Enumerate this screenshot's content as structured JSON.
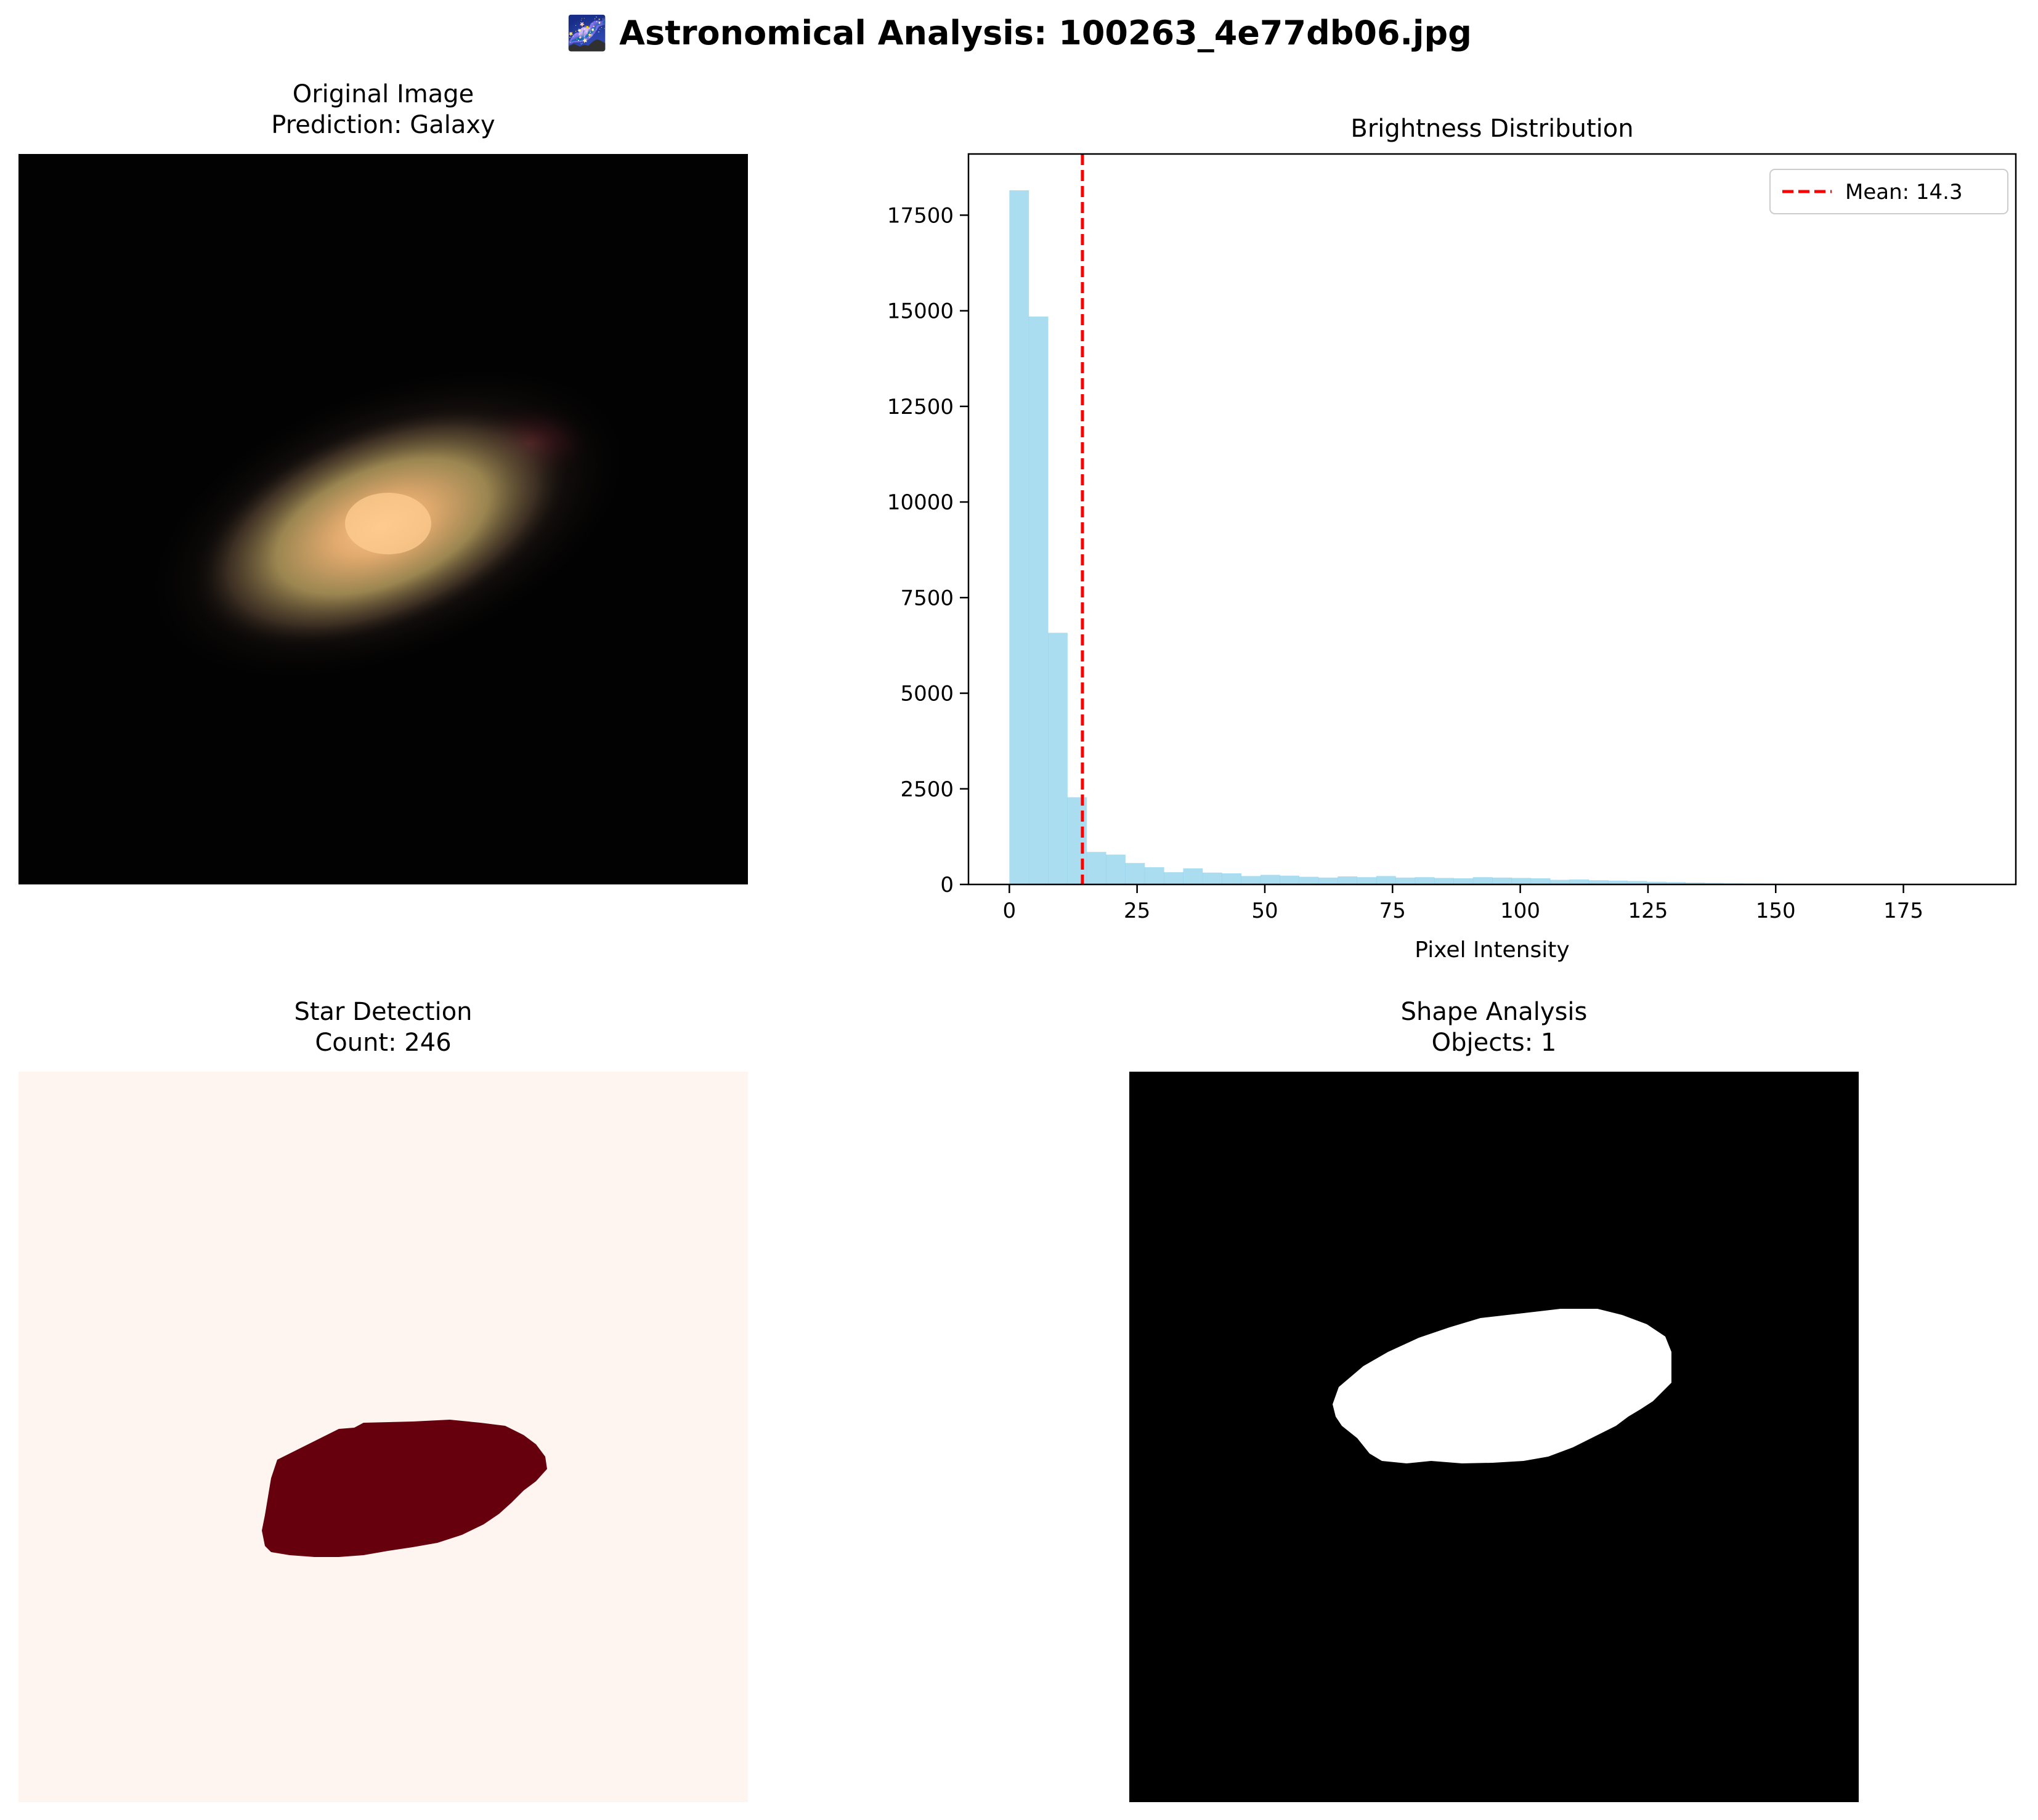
{
  "figure": {
    "title": "🌌 Astronomical Analysis: 100263_4e77db06.jpg"
  },
  "panels": {
    "original": {
      "title_line1": "Original Image",
      "title_line2": "Prediction: Galaxy"
    },
    "histogram": {
      "title": "Brightness Distribution"
    },
    "stars": {
      "title_line1": "Star Detection",
      "title_line2": "Count: 246"
    },
    "shape": {
      "title_line1": "Shape Analysis",
      "title_line2": "Objects: 1"
    }
  },
  "colors": {
    "bars": "#87ceeb",
    "mean_line": "#ff0000",
    "star_bg": "#fff5f0",
    "star_blob": "#67000d",
    "shape_bg": "#000000",
    "shape_blob": "#ffffff"
  },
  "chart_data": {
    "type": "bar",
    "title": "Brightness Distribution",
    "xlabel": "Pixel Intensity",
    "ylabel": "",
    "xlim": [
      -8,
      197
    ],
    "ylim": [
      0,
      19100
    ],
    "xticks": [
      0,
      25,
      50,
      75,
      100,
      125,
      150,
      175
    ],
    "yticks": [
      0,
      2500,
      5000,
      7500,
      10000,
      12500,
      15000,
      17500
    ],
    "bin_width": 3.78,
    "bin_start": 0,
    "bar_opacity": 0.7,
    "values": [
      18150,
      14850,
      6580,
      2280,
      850,
      780,
      560,
      450,
      320,
      420,
      310,
      290,
      220,
      250,
      230,
      200,
      180,
      210,
      190,
      220,
      180,
      190,
      170,
      160,
      190,
      180,
      170,
      160,
      120,
      130,
      110,
      100,
      90,
      70,
      60,
      50,
      40,
      30,
      25,
      20,
      15,
      12,
      10,
      8,
      6,
      5,
      4,
      3,
      2,
      1
    ],
    "mean_value": 14.3,
    "legend": {
      "entry": "Mean: 14.3",
      "position": "top-right"
    }
  }
}
